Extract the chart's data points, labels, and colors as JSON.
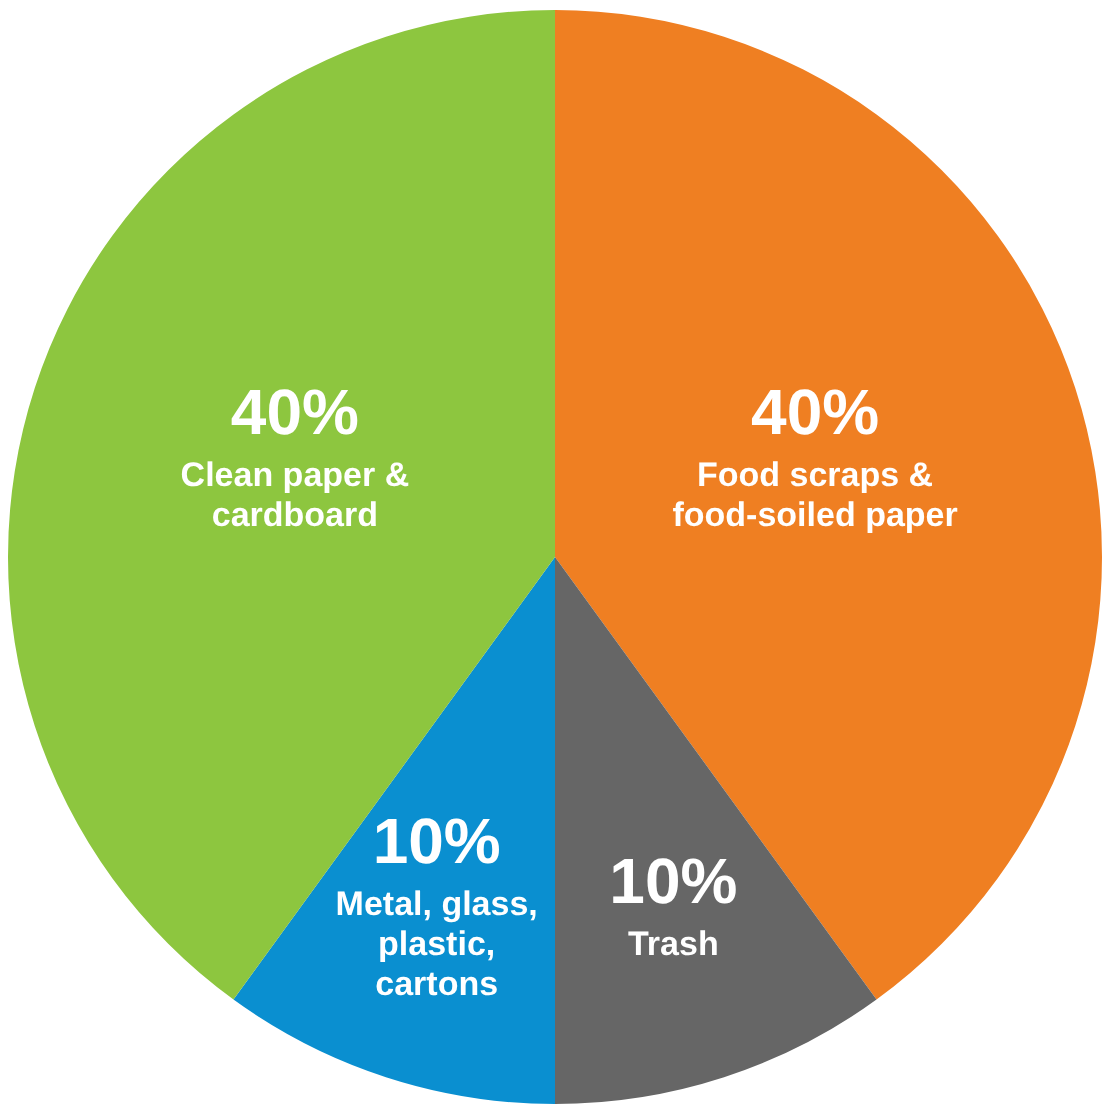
{
  "chart_data": {
    "type": "pie",
    "categories": [
      "Food scraps & food-soiled paper",
      "Trash",
      "Metal, glass, plastic, cartons",
      "Clean paper & cardboard"
    ],
    "values": [
      40,
      10,
      10,
      40
    ],
    "colors": [
      "#ef7f22",
      "#666666",
      "#0a8fd0",
      "#8dc63f"
    ],
    "value_labels": [
      "40%",
      "10%",
      "10%",
      "40%"
    ],
    "legend": false
  }
}
